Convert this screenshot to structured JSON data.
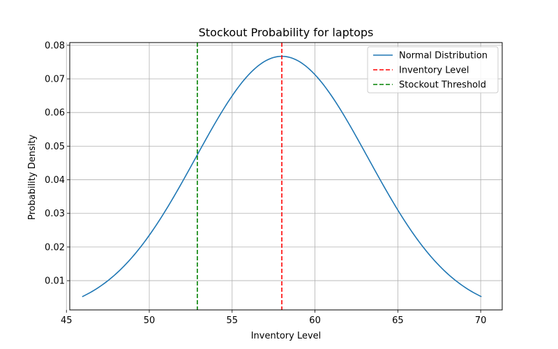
{
  "chart_data": {
    "type": "line",
    "title": "Stockout Probability for laptops",
    "xlabel": "Inventory Level",
    "ylabel": "Probability Density",
    "xlim": [
      45.2,
      71.3
    ],
    "ylim": [
      0.0013,
      0.0808
    ],
    "xticks": [
      45,
      50,
      55,
      60,
      65,
      70
    ],
    "yticks": [
      0.01,
      0.02,
      0.03,
      0.04,
      0.05,
      0.06,
      0.07,
      0.08
    ],
    "ytick_labels": [
      "0.01",
      "0.02",
      "0.03",
      "0.04",
      "0.05",
      "0.06",
      "0.07",
      "0.08"
    ],
    "grid": true,
    "legend_position": "top-right",
    "series": [
      {
        "name": "Normal Distribution",
        "kind": "curve",
        "color": "#1f77b4",
        "distribution": {
          "mean": 58.0,
          "std": 5.2
        },
        "x_range": [
          45.95,
          70.05
        ]
      },
      {
        "name": "Inventory Level",
        "kind": "vline",
        "x": 58.0,
        "color": "#ff0000"
      },
      {
        "name": "Stockout Threshold",
        "kind": "vline",
        "x": 52.9,
        "color": "#008000"
      }
    ]
  }
}
